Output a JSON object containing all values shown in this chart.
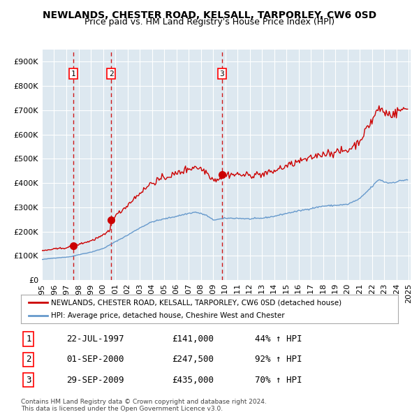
{
  "title": "NEWLANDS, CHESTER ROAD, KELSALL, TARPORLEY, CW6 0SD",
  "subtitle": "Price paid vs. HM Land Registry's House Price Index (HPI)",
  "legend_line1": "NEWLANDS, CHESTER ROAD, KELSALL, TARPORLEY, CW6 0SD (detached house)",
  "legend_line2": "HPI: Average price, detached house, Cheshire West and Chester",
  "footer1": "Contains HM Land Registry data © Crown copyright and database right 2024.",
  "footer2": "This data is licensed under the Open Government Licence v3.0.",
  "transactions": [
    {
      "num": 1,
      "date": "1997-07-22",
      "price": 141000,
      "pct": "44%",
      "dir": "↑"
    },
    {
      "num": 2,
      "date": "2000-09-01",
      "price": 247500,
      "pct": "92%",
      "dir": "↑"
    },
    {
      "num": 3,
      "date": "2009-09-29",
      "price": 435000,
      "pct": "70%",
      "dir": "↑"
    }
  ],
  "table_dates": [
    "22-JUL-1997",
    "01-SEP-2000",
    "29-SEP-2009"
  ],
  "table_prices": [
    "£141,000",
    "£247,500",
    "£435,000"
  ],
  "table_pcts": [
    "44% ↑ HPI",
    "92% ↑ HPI",
    "70% ↑ HPI"
  ],
  "red_color": "#cc0000",
  "blue_color": "#6699cc",
  "bg_color": "#dde8f0",
  "grid_color": "#ffffff",
  "dashed_color": "#cc0000",
  "ylim": [
    0,
    950000
  ],
  "yticks": [
    0,
    100000,
    200000,
    300000,
    400000,
    500000,
    600000,
    700000,
    800000,
    900000
  ]
}
